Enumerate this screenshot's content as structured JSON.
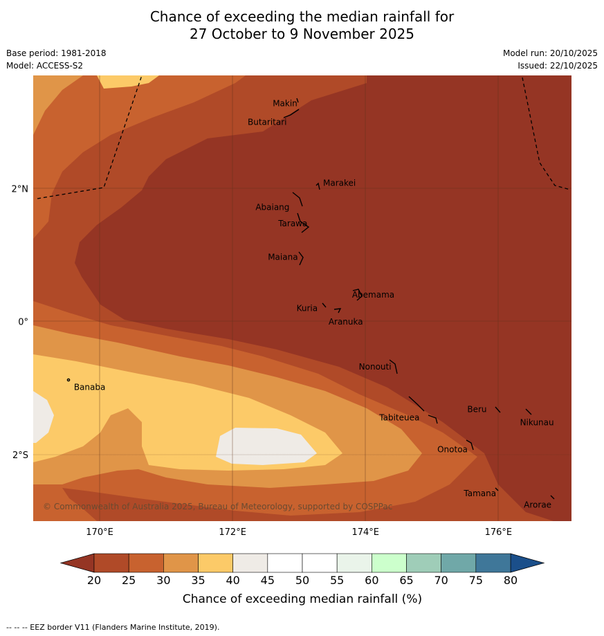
{
  "header": {
    "title_line1": "Chance of exceeding the median rainfall for",
    "title_line2": "27 October to 9 November 2025",
    "base_period": "Base period: 1981-2018",
    "model": "Model: ACCESS-S2",
    "model_run": "Model run: 20/10/2025",
    "issued": "Issued: 22/10/2025"
  },
  "map": {
    "lon_range": [
      169,
      177.1
    ],
    "lat_range": [
      -3.0,
      3.7
    ],
    "lon_ticks": [
      {
        "value": 170,
        "label": "170°E"
      },
      {
        "value": 172,
        "label": "172°E"
      },
      {
        "value": 174,
        "label": "174°E"
      },
      {
        "value": 176,
        "label": "176°E"
      }
    ],
    "lat_ticks": [
      {
        "value": 2,
        "label": "2°N"
      },
      {
        "value": 0,
        "label": "0°"
      },
      {
        "value": -2,
        "label": "2°S"
      }
    ],
    "places": [
      {
        "name": "Makin",
        "lon": 173.0,
        "lat": 3.33
      },
      {
        "name": "Butaritari",
        "lon": 172.8,
        "lat": 3.07
      },
      {
        "name": "Marakei",
        "lon": 173.3,
        "lat": 2.0
      },
      {
        "name": "Abaiang",
        "lon": 172.97,
        "lat": 1.8
      },
      {
        "name": "Tarawa",
        "lon": 173.0,
        "lat": 1.43
      },
      {
        "name": "Maiana",
        "lon": 173.0,
        "lat": 0.95
      },
      {
        "name": "Abemama",
        "lon": 173.85,
        "lat": 0.38
      },
      {
        "name": "Kuria",
        "lon": 173.4,
        "lat": 0.22
      },
      {
        "name": "Aranuka",
        "lon": 173.6,
        "lat": 0.15
      },
      {
        "name": "Banaba",
        "lon": 169.55,
        "lat": -0.87
      },
      {
        "name": "Nonouti",
        "lon": 174.4,
        "lat": -0.65
      },
      {
        "name": "Beru",
        "lon": 176.0,
        "lat": -1.33
      },
      {
        "name": "Tabiteuea",
        "lon": 174.75,
        "lat": -1.33
      },
      {
        "name": "Nikunau",
        "lon": 176.45,
        "lat": -1.35
      },
      {
        "name": "Onotoa",
        "lon": 175.55,
        "lat": -1.8
      },
      {
        "name": "Tamana",
        "lon": 175.98,
        "lat": -2.5
      },
      {
        "name": "Arorae",
        "lon": 176.8,
        "lat": -2.65
      }
    ],
    "copyright": "© Commonwealth of Australia 2025, Bureau of Meteorology, supported by COSPPac"
  },
  "legend": {
    "levels": [
      20,
      25,
      30,
      35,
      40,
      45,
      50,
      55,
      60,
      65,
      70,
      75,
      80
    ],
    "colors": [
      "#b04a28",
      "#c8622f",
      "#e09548",
      "#fcca68",
      "#efebe6",
      "#ffffff",
      "#ffffff",
      "#eaf4ea",
      "#ccffcc",
      "#9fcdb8",
      "#70a8a8",
      "#3f7799"
    ],
    "under_color": "#953524",
    "over_color": "#1b4f8a",
    "title": "Chance of exceeding median rainfall (%)"
  },
  "footnote": "--  --  -- EEZ border V11 (Flanders Marine Institute, 2019)."
}
